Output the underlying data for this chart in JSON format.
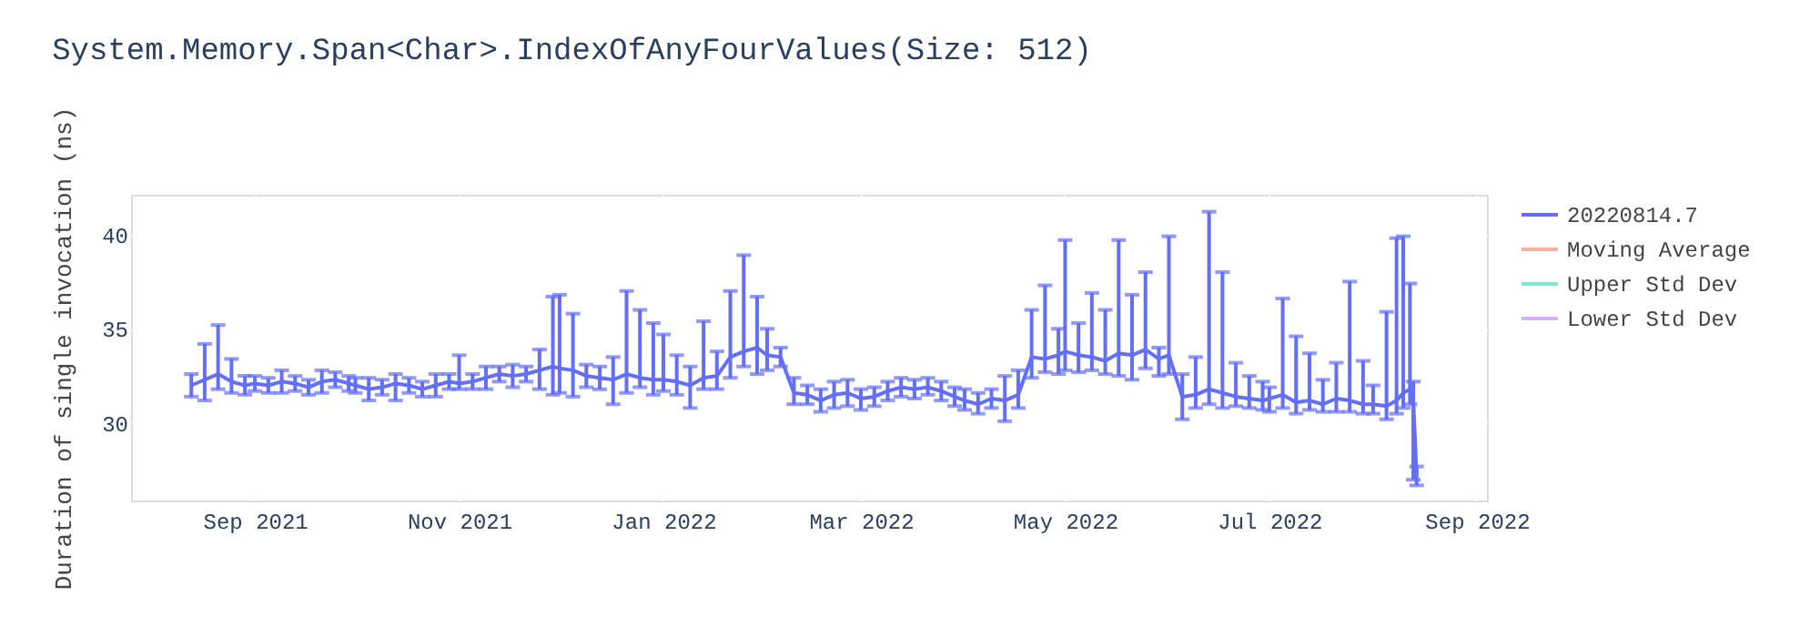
{
  "chart_data": {
    "type": "line",
    "title": "System.Memory.Span<Char>.IndexOfAnyFourValues(Size: 512)",
    "ylabel": "Duration of single invocation (ns)",
    "xlim": [
      "2021-07-26",
      "2022-09-04"
    ],
    "xticks": [
      {
        "value": "2021-09-01",
        "label": "Sep 2021"
      },
      {
        "value": "2021-11-01",
        "label": "Nov 2021"
      },
      {
        "value": "2022-01-01",
        "label": "Jan 2022"
      },
      {
        "value": "2022-03-01",
        "label": "Mar 2022"
      },
      {
        "value": "2022-05-01",
        "label": "May 2022"
      },
      {
        "value": "2022-07-01",
        "label": "Jul 2022"
      },
      {
        "value": "2022-09-01",
        "label": "Sep 2022"
      }
    ],
    "ylim": [
      25.9,
      42.1
    ],
    "yticks": [
      30,
      35,
      40
    ],
    "grid": true,
    "legend": "top right",
    "marker": "none",
    "line_style": "solid",
    "x": [
      "2021-08-13",
      "2021-08-17",
      "2021-08-21",
      "2021-08-25",
      "2021-08-29",
      "2021-09-01",
      "2021-09-05",
      "2021-09-09",
      "2021-09-13",
      "2021-09-17",
      "2021-09-21",
      "2021-09-25",
      "2021-09-29",
      "2021-10-01",
      "2021-10-05",
      "2021-10-09",
      "2021-10-13",
      "2021-10-17",
      "2021-10-21",
      "2021-10-25",
      "2021-10-29",
      "2021-11-01",
      "2021-11-05",
      "2021-11-09",
      "2021-11-13",
      "2021-11-17",
      "2021-11-21",
      "2021-11-25",
      "2021-11-29",
      "2021-12-01",
      "2021-12-05",
      "2021-12-09",
      "2021-12-13",
      "2021-12-17",
      "2021-12-21",
      "2021-12-25",
      "2021-12-29",
      "2022-01-01",
      "2022-01-05",
      "2022-01-09",
      "2022-01-13",
      "2022-01-17",
      "2022-01-21",
      "2022-01-25",
      "2022-01-29",
      "2022-02-01",
      "2022-02-05",
      "2022-02-09",
      "2022-02-13",
      "2022-02-17",
      "2022-02-21",
      "2022-02-25",
      "2022-03-01",
      "2022-03-05",
      "2022-03-09",
      "2022-03-13",
      "2022-03-17",
      "2022-03-21",
      "2022-03-25",
      "2022-03-29",
      "2022-04-01",
      "2022-04-05",
      "2022-04-09",
      "2022-04-13",
      "2022-04-17",
      "2022-04-21",
      "2022-04-25",
      "2022-04-29",
      "2022-05-01",
      "2022-05-05",
      "2022-05-09",
      "2022-05-13",
      "2022-05-17",
      "2022-05-21",
      "2022-05-25",
      "2022-05-29",
      "2022-06-01",
      "2022-06-05",
      "2022-06-09",
      "2022-06-13",
      "2022-06-17",
      "2022-06-21",
      "2022-06-25",
      "2022-06-29",
      "2022-07-01",
      "2022-07-05",
      "2022-07-09",
      "2022-07-13",
      "2022-07-17",
      "2022-07-21",
      "2022-07-25",
      "2022-07-29",
      "2022-08-01",
      "2022-08-05",
      "2022-08-08",
      "2022-08-10",
      "2022-08-12",
      "2022-08-13",
      "2022-08-14"
    ],
    "series": [
      {
        "name": "20220814.7",
        "color": "#636efa",
        "values": [
          32.0,
          32.3,
          32.6,
          32.2,
          32.0,
          32.1,
          32.0,
          32.2,
          32.1,
          31.9,
          32.2,
          32.3,
          32.1,
          32.0,
          31.8,
          31.9,
          32.1,
          32.0,
          31.8,
          32.0,
          32.2,
          32.1,
          32.2,
          32.4,
          32.6,
          32.5,
          32.6,
          32.8,
          33.0,
          32.9,
          32.8,
          32.5,
          32.4,
          32.3,
          32.6,
          32.4,
          32.3,
          32.3,
          32.2,
          32.0,
          32.4,
          32.5,
          33.5,
          33.8,
          34.0,
          33.6,
          33.5,
          31.6,
          31.5,
          31.2,
          31.5,
          31.6,
          31.3,
          31.4,
          31.7,
          31.9,
          31.8,
          31.9,
          31.7,
          31.4,
          31.2,
          31.0,
          31.3,
          31.2,
          31.5,
          33.5,
          33.4,
          33.6,
          33.8,
          33.6,
          33.5,
          33.3,
          33.7,
          33.6,
          33.9,
          33.4,
          33.6,
          31.4,
          31.5,
          31.8,
          31.6,
          31.4,
          31.3,
          31.2,
          31.3,
          31.5,
          31.1,
          31.2,
          31.0,
          31.3,
          31.2,
          31.0,
          31.0,
          30.9,
          31.2,
          31.6,
          31.8,
          31.2,
          27.2
        ],
        "errors": [
          0.6,
          [
            31.2,
            34.2
          ],
          [
            31.8,
            35.2
          ],
          [
            31.6,
            33.4
          ],
          0.5,
          0.4,
          0.4,
          0.6,
          0.4,
          0.4,
          0.6,
          0.4,
          0.4,
          0.4,
          0.6,
          0.4,
          [
            31.2,
            32.6
          ],
          0.4,
          0.4,
          0.6,
          0.4,
          [
            31.8,
            33.6
          ],
          0.4,
          0.6,
          0.4,
          0.6,
          0.4,
          [
            31.8,
            33.9
          ],
          [
            31.5,
            36.7
          ],
          [
            31.6,
            36.8
          ],
          [
            31.4,
            35.8
          ],
          0.6,
          0.6,
          [
            31.0,
            33.5
          ],
          [
            31.6,
            37.0
          ],
          [
            31.9,
            36.0
          ],
          [
            31.5,
            35.3
          ],
          [
            31.7,
            34.7
          ],
          [
            31.5,
            33.6
          ],
          [
            30.8,
            33.0
          ],
          [
            31.8,
            35.4
          ],
          [
            31.8,
            33.8
          ],
          [
            32.4,
            37.0
          ],
          [
            33.0,
            38.9
          ],
          [
            32.6,
            36.7
          ],
          [
            32.8,
            35.0
          ],
          [
            33.0,
            34.0
          ],
          [
            31.0,
            32.4
          ],
          [
            31.0,
            32.0
          ],
          [
            30.6,
            31.8
          ],
          [
            30.8,
            32.2
          ],
          [
            30.9,
            32.3
          ],
          [
            30.7,
            31.8
          ],
          0.5,
          0.5,
          0.5,
          0.5,
          [
            31.5,
            32.4
          ],
          0.5,
          0.5,
          [
            30.7,
            31.8
          ],
          [
            30.5,
            31.6
          ],
          0.5,
          [
            30.1,
            32.5
          ],
          [
            30.8,
            32.8
          ],
          [
            32.4,
            36.0
          ],
          [
            32.7,
            37.3
          ],
          [
            32.6,
            35.0
          ],
          [
            32.8,
            39.7
          ],
          [
            32.7,
            35.3
          ],
          [
            32.8,
            36.9
          ],
          [
            32.6,
            36.0
          ],
          [
            32.5,
            39.7
          ],
          [
            32.3,
            36.8
          ],
          [
            32.9,
            38.0
          ],
          [
            32.5,
            34.0
          ],
          [
            32.6,
            39.9
          ],
          [
            30.2,
            32.6
          ],
          [
            30.8,
            33.5
          ],
          [
            31.0,
            41.2
          ],
          [
            30.8,
            38.0
          ],
          [
            30.9,
            33.2
          ],
          [
            30.8,
            32.5
          ],
          [
            30.7,
            32.2
          ],
          [
            30.6,
            31.9
          ],
          [
            30.8,
            36.6
          ],
          [
            30.5,
            34.6
          ],
          [
            30.7,
            33.7
          ],
          [
            30.6,
            32.3
          ],
          [
            30.6,
            33.2
          ],
          [
            30.6,
            37.5
          ],
          [
            30.5,
            33.3
          ],
          [
            30.5,
            32.0
          ],
          [
            30.2,
            35.9
          ],
          [
            30.5,
            39.8
          ],
          [
            30.8,
            39.9
          ],
          [
            31.0,
            37.4
          ],
          [
            27.0,
            32.2
          ],
          [
            26.7,
            27.7
          ]
        ]
      },
      {
        "name": "Moving Average",
        "color": "#f7b0a2",
        "values": [
          null,
          null,
          null,
          null,
          null,
          null,
          null,
          null,
          null,
          null,
          null,
          null,
          null,
          null,
          null,
          null,
          null,
          null,
          null,
          null,
          null,
          null,
          null,
          null,
          null,
          null,
          null,
          null,
          null,
          null,
          null,
          null,
          null,
          null,
          null,
          null,
          null,
          null,
          null,
          null,
          null,
          null,
          null,
          null,
          null,
          null,
          null,
          null,
          null,
          null,
          null,
          null,
          null,
          null,
          null,
          null,
          null,
          null,
          null,
          null,
          null,
          null,
          null,
          null,
          null,
          null,
          null,
          null,
          null,
          null,
          null,
          null,
          null,
          null,
          null,
          null,
          null,
          null,
          null,
          null,
          null,
          null,
          null,
          null,
          null,
          null,
          null,
          null,
          null,
          null,
          null,
          null,
          null,
          null,
          null,
          null,
          null,
          null,
          null
        ]
      },
      {
        "name": "Upper Std Dev",
        "color": "#80e6cb",
        "values": [
          null,
          null,
          null,
          null,
          null,
          null,
          null,
          null,
          null,
          null,
          null,
          null,
          null,
          null,
          null,
          null,
          null,
          null,
          null,
          null,
          null,
          null,
          null,
          null,
          null,
          null,
          null,
          null,
          null,
          null,
          null,
          null,
          null,
          null,
          null,
          null,
          null,
          null,
          null,
          null,
          null,
          null,
          null,
          null,
          null,
          null,
          null,
          null,
          null,
          null,
          null,
          null,
          null,
          null,
          null,
          null,
          null,
          null,
          null,
          null,
          null,
          null,
          null,
          null,
          null,
          null,
          null,
          null,
          null,
          null,
          null,
          null,
          null,
          null,
          null,
          null,
          null,
          null,
          null,
          null,
          null,
          null,
          null,
          null,
          null,
          null,
          null,
          null,
          null,
          null,
          null,
          null,
          null,
          null,
          null,
          null,
          null,
          null,
          null
        ]
      },
      {
        "name": "Lower Std Dev",
        "color": "#d5b1fd",
        "values": [
          null,
          null,
          null,
          null,
          null,
          null,
          null,
          null,
          null,
          null,
          null,
          null,
          null,
          null,
          null,
          null,
          null,
          null,
          null,
          null,
          null,
          null,
          null,
          null,
          null,
          null,
          null,
          null,
          null,
          null,
          null,
          null,
          null,
          null,
          null,
          null,
          null,
          null,
          null,
          null,
          null,
          null,
          null,
          null,
          null,
          null,
          null,
          null,
          null,
          null,
          null,
          null,
          null,
          null,
          null,
          null,
          null,
          null,
          null,
          null,
          null,
          null,
          null,
          null,
          null,
          null,
          null,
          null,
          null,
          null,
          null,
          null,
          null,
          null,
          null,
          null,
          null,
          null,
          null,
          null,
          null,
          null,
          null,
          null,
          null,
          null,
          null,
          null,
          null,
          null,
          null,
          null,
          null,
          null,
          null,
          null,
          null,
          null,
          null
        ]
      }
    ]
  }
}
